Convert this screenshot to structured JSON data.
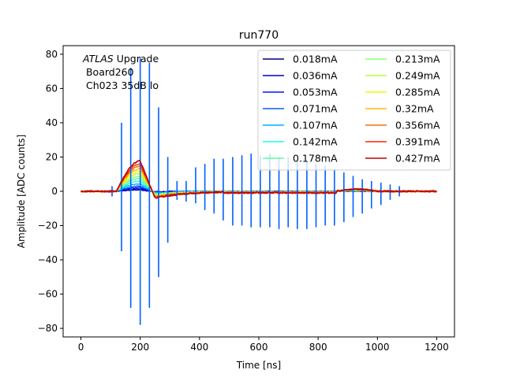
{
  "chart_data": {
    "type": "line",
    "title": "run770",
    "xlabel": "Time [ns]",
    "ylabel": "Amplitude [ADC counts]",
    "xlim": [
      -60,
      1260
    ],
    "ylim": [
      -85,
      85
    ],
    "xticks": [
      0,
      200,
      400,
      600,
      800,
      1000,
      1200
    ],
    "yticks": [
      -80,
      -60,
      -40,
      -20,
      0,
      20,
      40,
      60,
      80
    ],
    "grid": false,
    "legend_position": "top-right",
    "legend_columns": 2,
    "annotation": {
      "italic": "ATLAS",
      "rest": " Upgrade",
      "line2": " Board260",
      "line3": " Ch023 35dB lo"
    },
    "series": [
      {
        "name": "0.018mA",
        "color": "#00007f",
        "peak": 0.8
      },
      {
        "name": "0.036mA",
        "color": "#0000d0",
        "peak": 1.5
      },
      {
        "name": "0.053mA",
        "color": "#0010ff",
        "peak": 2.2
      },
      {
        "name": "0.071mA",
        "color": "#0060ff",
        "peak": 3.0
      },
      {
        "name": "0.107mA",
        "color": "#00b0ff",
        "peak": 4.4
      },
      {
        "name": "0.142mA",
        "color": "#16ffe1",
        "peak": 5.9
      },
      {
        "name": "0.178mA",
        "color": "#5affa0",
        "peak": 7.4
      },
      {
        "name": "0.213mA",
        "color": "#8cff6a",
        "peak": 8.8
      },
      {
        "name": "0.249mA",
        "color": "#b9ff3d",
        "peak": 10.3
      },
      {
        "name": "0.285mA",
        "color": "#f1fc06",
        "peak": 11.8
      },
      {
        "name": "0.32mA",
        "color": "#ffb900",
        "peak": 13.2
      },
      {
        "name": "0.356mA",
        "color": "#ff6e00",
        "peak": 14.7
      },
      {
        "name": "0.391mA",
        "color": "#ff2400",
        "peak": 16.2
      },
      {
        "name": "0.427mA",
        "color": "#c20000",
        "peak": 17.6
      }
    ],
    "spike_series": "0.071mA",
    "spikes": [
      {
        "t": 105,
        "hi": 3,
        "lo": -3
      },
      {
        "t": 137,
        "hi": 40,
        "lo": -35
      },
      {
        "t": 168,
        "hi": 72,
        "lo": -68
      },
      {
        "t": 200,
        "hi": 78,
        "lo": -78
      },
      {
        "t": 231,
        "hi": 75,
        "lo": -68
      },
      {
        "t": 262,
        "hi": 49,
        "lo": -50
      },
      {
        "t": 293,
        "hi": 20,
        "lo": -30
      },
      {
        "t": 324,
        "hi": 6,
        "lo": -5
      },
      {
        "t": 355,
        "hi": 6,
        "lo": -6
      },
      {
        "t": 387,
        "hi": 14,
        "lo": -7
      },
      {
        "t": 418,
        "hi": 16,
        "lo": -11
      },
      {
        "t": 449,
        "hi": 19,
        "lo": -13
      },
      {
        "t": 480,
        "hi": 19,
        "lo": -17
      },
      {
        "t": 512,
        "hi": 20,
        "lo": -20
      },
      {
        "t": 543,
        "hi": 21,
        "lo": -20
      },
      {
        "t": 574,
        "hi": 22,
        "lo": -21
      },
      {
        "t": 605,
        "hi": 21,
        "lo": -21
      },
      {
        "t": 637,
        "hi": 22,
        "lo": -21
      },
      {
        "t": 668,
        "hi": 20,
        "lo": -22
      },
      {
        "t": 699,
        "hi": 20,
        "lo": -21
      },
      {
        "t": 730,
        "hi": 18,
        "lo": -22
      },
      {
        "t": 762,
        "hi": 18,
        "lo": -22
      },
      {
        "t": 793,
        "hi": 16,
        "lo": -21
      },
      {
        "t": 824,
        "hi": 15,
        "lo": -20
      },
      {
        "t": 855,
        "hi": 13,
        "lo": -20
      },
      {
        "t": 887,
        "hi": 11,
        "lo": -18
      },
      {
        "t": 918,
        "hi": 9,
        "lo": -15
      },
      {
        "t": 949,
        "hi": 7,
        "lo": -13
      },
      {
        "t": 980,
        "hi": 6,
        "lo": -10
      },
      {
        "t": 1012,
        "hi": 5,
        "lo": -8
      },
      {
        "t": 1043,
        "hi": 4,
        "lo": -5
      },
      {
        "t": 1074,
        "hi": 3,
        "lo": -3
      }
    ]
  }
}
